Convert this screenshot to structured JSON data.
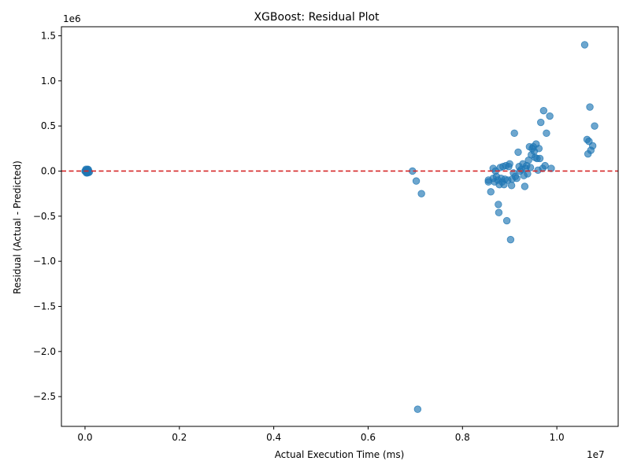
{
  "chart_data": {
    "type": "scatter",
    "title": "XGBoost: Residual Plot",
    "xlabel": "Actual Execution Time (ms)",
    "ylabel": "Residual (Actual - Predicted)",
    "x_offset_label": "1e7",
    "y_offset_label": "1e6",
    "xlim": [
      -0.05,
      1.13
    ],
    "ylim": [
      -2.83,
      1.6
    ],
    "x_units_note": "x and y values shown in axis tick units (x ×1e7 ms, y ×1e6)",
    "xticks": [
      0.0,
      0.2,
      0.4,
      0.6,
      0.8,
      1.0
    ],
    "xtick_labels": [
      "0.0",
      "0.2",
      "0.4",
      "0.6",
      "0.8",
      "1.0"
    ],
    "yticks": [
      -2.5,
      -2.0,
      -1.5,
      -1.0,
      -0.5,
      0.0,
      0.5,
      1.0,
      1.5
    ],
    "ytick_labels": [
      "−2.5",
      "−2.0",
      "−1.5",
      "−1.0",
      "−0.5",
      "0.0",
      "0.5",
      "1.0",
      "1.5"
    ],
    "reference_line": {
      "y": 0.0,
      "style": "dashed",
      "color": "#d62728"
    },
    "marker_color": "#1f77b4",
    "grid": false,
    "points": [
      [
        0.0,
        0.0
      ],
      [
        0.002,
        0.01
      ],
      [
        0.004,
        -0.01
      ],
      [
        0.006,
        0.02
      ],
      [
        0.003,
        -0.02
      ],
      [
        0.005,
        0.005
      ],
      [
        0.001,
        -0.005
      ],
      [
        0.007,
        0.015
      ],
      [
        0.002,
        0.02
      ],
      [
        0.008,
        -0.015
      ],
      [
        0.006,
        0.0
      ],
      [
        0.004,
        0.01
      ],
      [
        0.009,
        -0.01
      ],
      [
        0.005,
        -0.02
      ],
      [
        0.003,
        0.0
      ],
      [
        0.694,
        0.0
      ],
      [
        0.702,
        -0.11
      ],
      [
        0.713,
        -0.25
      ],
      [
        0.705,
        -2.64
      ],
      [
        0.855,
        -0.1
      ],
      [
        0.855,
        -0.12
      ],
      [
        0.86,
        -0.23
      ],
      [
        0.865,
        -0.08
      ],
      [
        0.868,
        -0.12
      ],
      [
        0.865,
        0.03
      ],
      [
        0.87,
        0.0
      ],
      [
        0.872,
        -0.06
      ],
      [
        0.875,
        -0.1
      ],
      [
        0.878,
        -0.15
      ],
      [
        0.876,
        -0.37
      ],
      [
        0.877,
        -0.46
      ],
      [
        0.88,
        0.04
      ],
      [
        0.882,
        -0.08
      ],
      [
        0.884,
        -0.12
      ],
      [
        0.886,
        0.05
      ],
      [
        0.888,
        -0.15
      ],
      [
        0.89,
        -0.09
      ],
      [
        0.892,
        0.06
      ],
      [
        0.894,
        -0.55
      ],
      [
        0.896,
        -0.1
      ],
      [
        0.898,
        0.05
      ],
      [
        0.9,
        0.08
      ],
      [
        0.902,
        -0.76
      ],
      [
        0.904,
        -0.16
      ],
      [
        0.905,
        -0.09
      ],
      [
        0.908,
        -0.02
      ],
      [
        0.91,
        0.42
      ],
      [
        0.912,
        -0.06
      ],
      [
        0.915,
        -0.08
      ],
      [
        0.918,
        0.21
      ],
      [
        0.92,
        0.05
      ],
      [
        0.922,
        0.0
      ],
      [
        0.925,
        0.02
      ],
      [
        0.928,
        0.08
      ],
      [
        0.93,
        -0.05
      ],
      [
        0.932,
        -0.17
      ],
      [
        0.934,
        0.03
      ],
      [
        0.936,
        0.06
      ],
      [
        0.938,
        -0.03
      ],
      [
        0.94,
        0.12
      ],
      [
        0.942,
        0.27
      ],
      [
        0.944,
        0.04
      ],
      [
        0.946,
        0.18
      ],
      [
        0.948,
        0.25
      ],
      [
        0.95,
        0.27
      ],
      [
        0.952,
        0.22
      ],
      [
        0.954,
        0.15
      ],
      [
        0.956,
        0.3
      ],
      [
        0.958,
        0.14
      ],
      [
        0.96,
        0.01
      ],
      [
        0.962,
        0.25
      ],
      [
        0.964,
        0.14
      ],
      [
        0.966,
        0.54
      ],
      [
        0.97,
        0.03
      ],
      [
        0.972,
        0.67
      ],
      [
        0.975,
        0.06
      ],
      [
        0.978,
        0.42
      ],
      [
        0.985,
        0.61
      ],
      [
        0.988,
        0.03
      ],
      [
        1.059,
        1.4
      ],
      [
        1.064,
        0.35
      ],
      [
        1.066,
        0.19
      ],
      [
        1.068,
        0.33
      ],
      [
        1.07,
        0.71
      ],
      [
        1.072,
        0.23
      ],
      [
        1.076,
        0.28
      ],
      [
        1.08,
        0.5
      ]
    ]
  }
}
